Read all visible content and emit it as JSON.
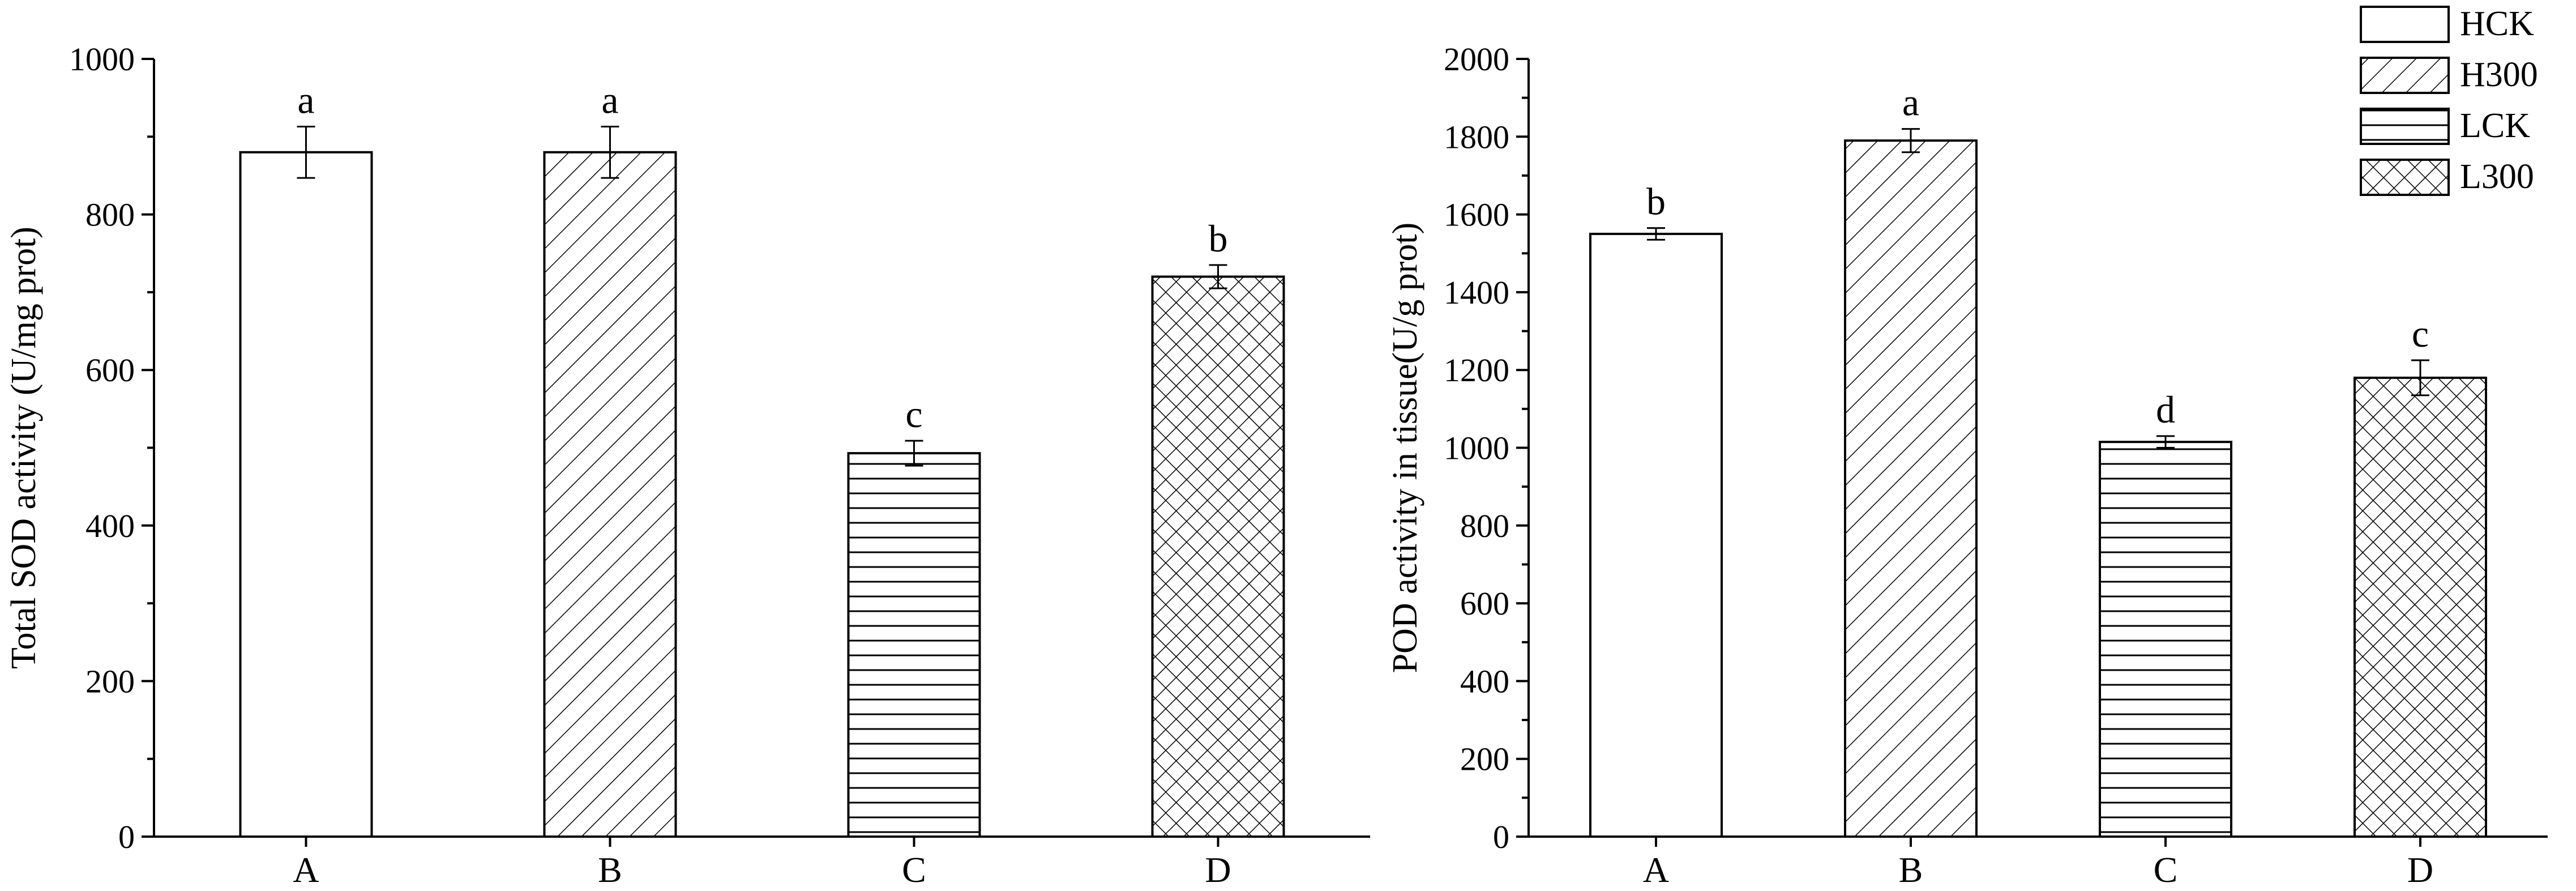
{
  "chart_data": [
    {
      "type": "bar",
      "categories": [
        "A",
        "B",
        "C",
        "D"
      ],
      "values": [
        880,
        880,
        493,
        720
      ],
      "errors": [
        33,
        33,
        16,
        15
      ],
      "significance": [
        "a",
        "a",
        "c",
        "b"
      ],
      "patterns": [
        "none",
        "diagonal",
        "horizontal",
        "crosshatch"
      ],
      "ylabel": "Total SOD activity (U/mg prot)",
      "ylim": [
        0,
        1000
      ],
      "yticks": [
        "0",
        "200",
        "400",
        "600",
        "800",
        "1000"
      ]
    },
    {
      "type": "bar",
      "categories": [
        "A",
        "B",
        "C",
        "D"
      ],
      "values": [
        1550,
        1790,
        1015,
        1180
      ],
      "errors": [
        15,
        30,
        15,
        45
      ],
      "significance": [
        "b",
        "a",
        "d",
        "c"
      ],
      "patterns": [
        "none",
        "diagonal",
        "horizontal",
        "crosshatch"
      ],
      "ylabel": "POD activity in tissue(U/g prot)",
      "ylim": [
        0,
        2000
      ],
      "yticks": [
        "0",
        "200",
        "400",
        "600",
        "800",
        "1000",
        "1200",
        "1400",
        "1600",
        "1800",
        "2000"
      ]
    }
  ],
  "legend": {
    "placement": "top-right",
    "items": [
      {
        "label": "HCK",
        "pattern": "none"
      },
      {
        "label": "H300",
        "pattern": "diagonal"
      },
      {
        "label": "LCK",
        "pattern": "horizontal"
      },
      {
        "label": "L300",
        "pattern": "crosshatch"
      }
    ]
  }
}
